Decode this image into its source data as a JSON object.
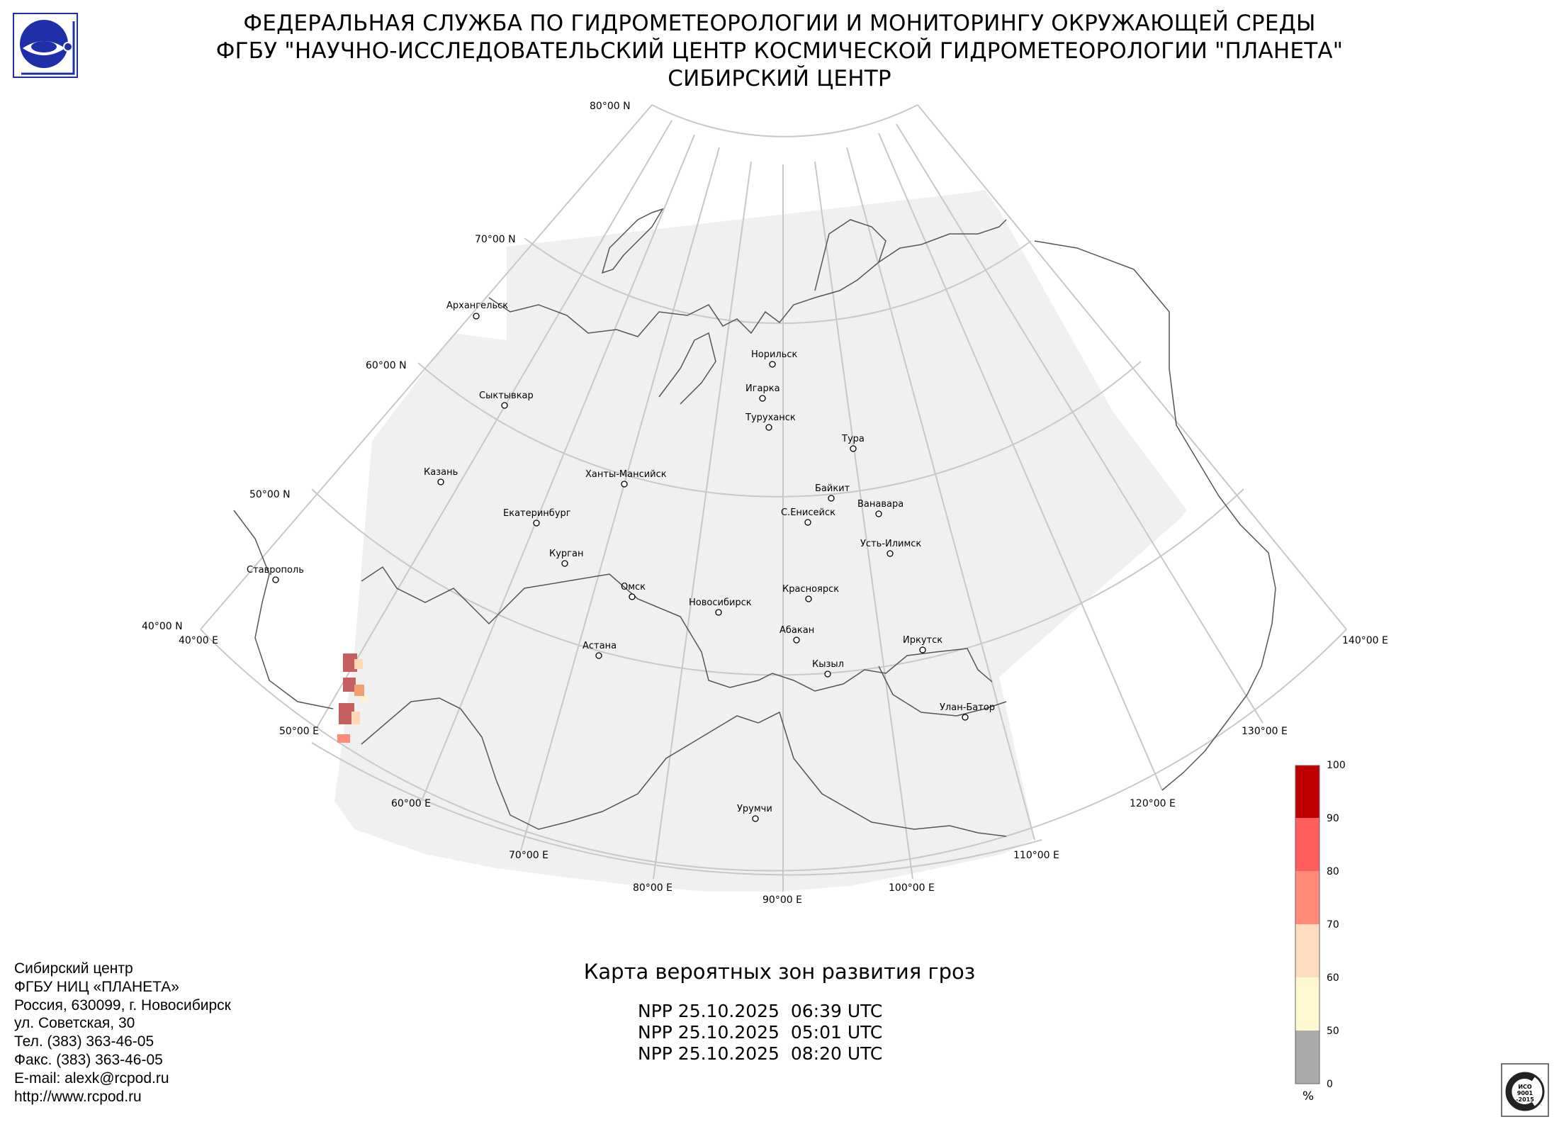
{
  "header": {
    "line1": "ФЕДЕРАЛЬНАЯ СЛУЖБА ПО ГИДРОМЕТЕОРОЛОГИИ И МОНИТОРИНГУ ОКРУЖАЮЩЕЙ СРЕДЫ",
    "line2": "ФГБУ \"НАУЧНО-ИССЛЕДОВАТЕЛЬСКИЙ ЦЕНТР КОСМИЧЕСКОЙ ГИДРОМЕТЕОРОЛОГИИ \"ПЛАНЕТА\"",
    "line3": "СИБИРСКИЙ ЦЕНТР"
  },
  "logo": {
    "icon": "roshydromet-logo-icon",
    "color": "#1f2fa8"
  },
  "map": {
    "latitude_labels": [
      "80°00 N",
      "70°00 N",
      "60°00 N",
      "50°00 N",
      "40°00 N"
    ],
    "longitude_labels": [
      "40°00 E",
      "50°00 E",
      "60°00 E",
      "70°00 E",
      "80°00 E",
      "90°00 E",
      "100°00 E",
      "110°00 E",
      "120°00 E",
      "130°00 E",
      "140°00 E"
    ],
    "cities": [
      "Архангельск",
      "Сыктывкар",
      "Казань",
      "Ставрополь",
      "Екатеринбург",
      "Курган",
      "Ханты-Мансийск",
      "Омск",
      "Астана",
      "Новосибирск",
      "Норильск",
      "Игарка",
      "Туруханск",
      "Тура",
      "Байкит",
      "С.Енисейск",
      "Ванавара",
      "Усть-Илимск",
      "Красноярск",
      "Абакан",
      "Кызыл",
      "Иркутск",
      "Улан-Батор",
      "Урумчи"
    ],
    "coverage_color": "#f0f0f0",
    "grid_color": "#c8c8c8",
    "border_color": "#555555"
  },
  "legend": {
    "ticks": [
      "100",
      "90",
      "80",
      "70",
      "60",
      "50",
      "0"
    ],
    "unit": "%",
    "colors": [
      "#c00000",
      "#ff5e5e",
      "#ff8a78",
      "#ffdcbf",
      "#fff8d0",
      "#aaaaaa"
    ]
  },
  "caption": {
    "title": "Карта вероятных зон развития гроз",
    "passes": [
      "NPP 25.10.2025  06:39 UTC",
      "NPP 25.10.2025  05:01 UTC",
      "NPP 25.10.2025  08:20 UTC"
    ]
  },
  "contact": {
    "lines": [
      "Сибирский центр",
      "ФГБУ НИЦ «ПЛАНЕТА»",
      "Россия, 630099, г. Новосибирск",
      "ул. Советская, 30",
      "Тел. (383) 363-46-05",
      "Факс. (383) 363-46-05",
      "E-mail: alexk@rcpod.ru",
      "http://www.rcpod.ru"
    ]
  },
  "certification": {
    "icon": "iso-9001-badge-icon",
    "text1": "ИСО",
    "text2": "9001",
    "text3": "-2015"
  }
}
